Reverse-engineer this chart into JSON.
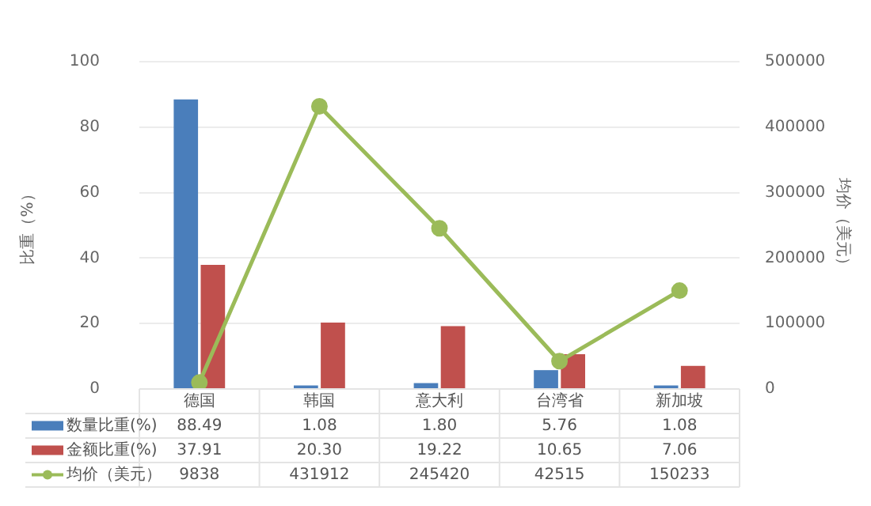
{
  "chart_data": {
    "type": "bar",
    "categories": [
      "德国",
      "韩国",
      "意大利",
      "台湾省",
      "新加坡"
    ],
    "series": [
      {
        "name": "数量比重(%)",
        "color": "#4a7ebb",
        "values": [
          88.49,
          1.08,
          1.8,
          5.76,
          1.08
        ],
        "value_labels": [
          "88.49",
          "1.08",
          "1.80",
          "5.76",
          "1.08"
        ]
      },
      {
        "name": "金额比重(%)",
        "color": "#c0504d",
        "values": [
          37.91,
          20.3,
          19.22,
          10.65,
          7.06
        ],
        "value_labels": [
          "37.91",
          "20.30",
          "19.22",
          "10.65",
          "7.06"
        ]
      },
      {
        "name": "均价（美元）",
        "type": "line",
        "axis": "y2",
        "color": "#9bbb59",
        "marker": "circle",
        "values": [
          9838,
          431912,
          245420,
          42515,
          150233
        ],
        "value_labels": [
          "9838",
          "431912",
          "245420",
          "42515",
          "150233"
        ]
      }
    ],
    "ylabel": "比重（%）",
    "y2label": "均价（美元）",
    "ylim": [
      0,
      100
    ],
    "yticks": [
      0,
      20,
      40,
      60,
      80,
      100
    ],
    "y2lim": [
      0,
      500000
    ],
    "y2ticks": [
      0,
      100000,
      200000,
      300000,
      400000,
      500000
    ],
    "grid": "y",
    "legend": "bottom"
  }
}
